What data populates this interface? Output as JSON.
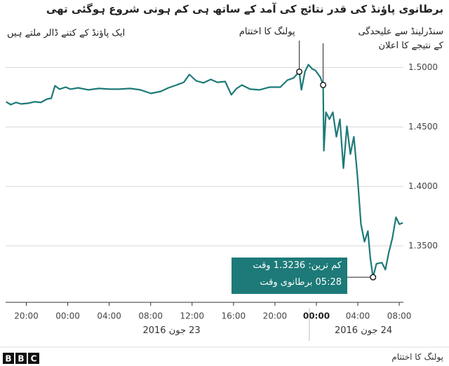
{
  "chart_data": {
    "type": "line",
    "title": "برطانوی پاؤنڈ کی قدر نتائج کی آمد کے ساتھ ہی کم ہونی شروع ہوگئی تھی",
    "subtitle": "ایک پاؤنڈ کے کتنے ڈالر ملتے ہیں",
    "color": "#1d7a78",
    "grid": true,
    "x": [
      18.04,
      18.5,
      19.0,
      19.5,
      20.2,
      20.8,
      21.4,
      22.0,
      22.4,
      22.77,
      23.2,
      23.8,
      24.26,
      25.0,
      26.0,
      27.0,
      28.0,
      29.0,
      30.0,
      31.01,
      32.03,
      33.0,
      33.72,
      34.5,
      35.2,
      35.74,
      36.4,
      37.09,
      37.8,
      38.44,
      39.2,
      39.79,
      40.3,
      40.81,
      41.6,
      42.5,
      43.5,
      44.53,
      45.2,
      45.8,
      46.35,
      46.55,
      46.9,
      47.23,
      47.6,
      47.91,
      48.38,
      48.65,
      48.72,
      48.92,
      49.26,
      49.59,
      49.93,
      50.27,
      50.61,
      50.95,
      51.28,
      51.62,
      51.96,
      52.3,
      52.64,
      52.97,
      53.2,
      53.47,
      53.8,
      54.32,
      54.66,
      55.0,
      55.34,
      55.68,
      56.01,
      56.35
    ],
    "values": [
      1.4712,
      1.4688,
      1.4706,
      1.4694,
      1.47,
      1.4712,
      1.4706,
      1.4735,
      1.4741,
      1.4847,
      1.4818,
      1.4835,
      1.4818,
      1.4829,
      1.4812,
      1.4824,
      1.4818,
      1.4818,
      1.4824,
      1.4812,
      1.4782,
      1.48,
      1.4829,
      1.4853,
      1.4876,
      1.4941,
      1.4888,
      1.4871,
      1.49,
      1.4876,
      1.4882,
      1.4771,
      1.4824,
      1.4853,
      1.4818,
      1.4812,
      1.4835,
      1.4835,
      1.4894,
      1.4912,
      1.4965,
      1.4812,
      1.4965,
      1.5024,
      1.4988,
      1.4976,
      1.4918,
      1.4853,
      1.43,
      1.4624,
      1.4565,
      1.4624,
      1.4418,
      1.4565,
      1.4153,
      1.4506,
      1.4271,
      1.4418,
      1.4094,
      1.3682,
      1.3535,
      1.3624,
      1.34,
      1.3236,
      1.335,
      1.3359,
      1.33,
      1.3447,
      1.3565,
      1.3741,
      1.3682,
      1.3694
    ],
    "xlim": [
      18,
      56.4
    ],
    "ylim": [
      1.3025,
      1.505
    ],
    "xticks": [
      {
        "value": 20,
        "label": "20:00"
      },
      {
        "value": 24,
        "label": "00:00"
      },
      {
        "value": 28,
        "label": "04:00"
      },
      {
        "value": 32,
        "label": "08:00"
      },
      {
        "value": 36,
        "label": "12:00"
      },
      {
        "value": 40,
        "label": "16:00"
      },
      {
        "value": 44,
        "label": "20:00"
      },
      {
        "value": 48,
        "label": "00:00"
      },
      {
        "value": 52,
        "label": "04:00"
      },
      {
        "value": 56,
        "label": "08:00"
      }
    ],
    "yticks": [
      {
        "value": 1.35,
        "label": "1.3500"
      },
      {
        "value": 1.4,
        "label": "1.4000"
      },
      {
        "value": 1.45,
        "label": "1.4500"
      },
      {
        "value": 1.5,
        "label": "1.5000"
      }
    ],
    "dates": [
      "23 جون 2016",
      "24 جون 2016"
    ],
    "annotations": [
      {
        "text": [
          "پولنگ کا اختتام"
        ],
        "x": 46.35,
        "y": 1.4965
      },
      {
        "text": [
          "سنڈرلینڈ سے علیحدگی",
          "کے نتیجے کا اعلان"
        ],
        "x": 48.65,
        "y": 1.4853
      },
      {
        "text": [
          "کم ترین: 1.3236 وقت",
          "05:28 برطانوی وقت"
        ],
        "x": 53.47,
        "y": 1.3236
      }
    ],
    "footer": {
      "logo": [
        "B",
        "B",
        "C"
      ],
      "source": "پولنگ کا اختتام"
    }
  }
}
